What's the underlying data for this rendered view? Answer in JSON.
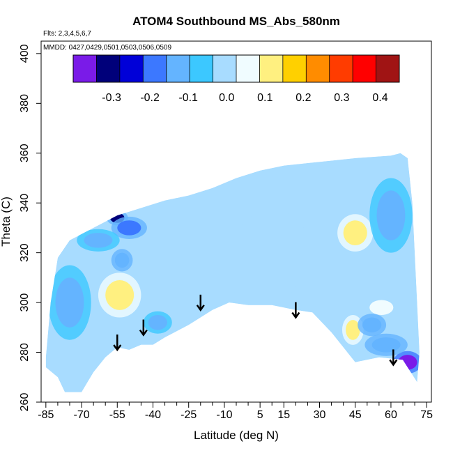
{
  "chart_data": {
    "type": "heatmap",
    "title": "ATOM4 Southbound MS_Abs_580nm",
    "annotations": {
      "flights": "Flts: 2,3,4,5,6,7",
      "dates": "MMDD: 0427,0429,0501,0503,0506,0509"
    },
    "xlabel": "Latitude (deg N)",
    "ylabel": "Theta (C)",
    "xlim": [
      -87,
      77
    ],
    "ylim": [
      260,
      405
    ],
    "x_ticks": [
      -85,
      -70,
      -55,
      -40,
      -25,
      -10,
      5,
      15,
      30,
      45,
      60,
      75
    ],
    "x_tick_labels": [
      "-85",
      "-70",
      "-55",
      "-40",
      "-25",
      "-10",
      "5",
      "15",
      "30",
      "45",
      "60",
      "75"
    ],
    "x_minor_ticks": [
      -80,
      -75,
      -65,
      -60,
      -50,
      -45,
      -35,
      -30,
      -20,
      -15,
      -5,
      0,
      10,
      20,
      25,
      35,
      40,
      50,
      55,
      65,
      70
    ],
    "y_ticks": [
      260,
      280,
      300,
      320,
      340,
      360,
      380,
      400
    ],
    "y_tick_labels": [
      "260",
      "280",
      "300",
      "320",
      "340",
      "360",
      "380",
      "400"
    ],
    "colorbar": {
      "colors": [
        "#7a1be8",
        "#00007a",
        "#0000d8",
        "#3c78ff",
        "#64b4ff",
        "#3cc8ff",
        "#a8dcff",
        "#f0fcff",
        "#fff080",
        "#ffd000",
        "#ff8c00",
        "#ff3c00",
        "#ff0000",
        "#a01414"
      ],
      "breaks": [
        -0.4,
        -0.35,
        -0.3,
        -0.25,
        -0.2,
        -0.15,
        -0.1,
        -0.05,
        0.0,
        0.05,
        0.1,
        0.15,
        0.2,
        0.25,
        0.3,
        0.35,
        0.4,
        0.45
      ],
      "tick_values": [
        -0.3,
        -0.2,
        -0.1,
        0.0,
        0.1,
        0.2,
        0.3,
        0.4
      ],
      "tick_labels": [
        "-0.3",
        "-0.2",
        "-0.1",
        "0.0",
        "0.1",
        "0.2",
        "0.3",
        "0.4"
      ]
    },
    "field": {
      "background": 0.0,
      "boundary": [
        [
          -85,
          278
        ],
        [
          -83,
          300
        ],
        [
          -80,
          318
        ],
        [
          -75,
          325
        ],
        [
          -65,
          330
        ],
        [
          -55,
          335
        ],
        [
          -45,
          338
        ],
        [
          -35,
          341
        ],
        [
          -25,
          343
        ],
        [
          -15,
          346
        ],
        [
          -5,
          350
        ],
        [
          5,
          353
        ],
        [
          15,
          355
        ],
        [
          25,
          356
        ],
        [
          35,
          357
        ],
        [
          45,
          358
        ],
        [
          60,
          359
        ],
        [
          64,
          360
        ],
        [
          67,
          358
        ],
        [
          69,
          340
        ],
        [
          71,
          300
        ],
        [
          72,
          280
        ],
        [
          71,
          268
        ],
        [
          65,
          277
        ],
        [
          55,
          278
        ],
        [
          45,
          276
        ],
        [
          40,
          282
        ],
        [
          35,
          288
        ],
        [
          27,
          296
        ],
        [
          20,
          297
        ],
        [
          10,
          299
        ],
        [
          0,
          299
        ],
        [
          -8,
          300
        ],
        [
          -15,
          297
        ],
        [
          -25,
          291
        ],
        [
          -35,
          286
        ],
        [
          -40,
          283
        ],
        [
          -45,
          283
        ],
        [
          -50,
          281
        ],
        [
          -55,
          282
        ],
        [
          -60,
          278
        ],
        [
          -65,
          272
        ],
        [
          -70,
          264
        ],
        [
          -77,
          264
        ],
        [
          -80,
          270
        ],
        [
          -85,
          274
        ]
      ],
      "blobs": [
        {
          "lat": -54,
          "theta": 303,
          "value": 0.12,
          "rx": 6,
          "ry": 6
        },
        {
          "lat": 45,
          "theta": 328,
          "value": 0.13,
          "rx": 5,
          "ry": 5
        },
        {
          "lat": 56,
          "theta": 298,
          "value": 0.08,
          "rx": 5,
          "ry": 3
        },
        {
          "lat": 44,
          "theta": 289,
          "value": 0.1,
          "rx": 3,
          "ry": 4
        },
        {
          "lat": -55,
          "theta": 334,
          "value": -0.3,
          "rx": 3,
          "ry": 2
        },
        {
          "lat": -50,
          "theta": 330,
          "value": -0.18,
          "rx": 5,
          "ry": 3
        },
        {
          "lat": -53,
          "theta": 317,
          "value": -0.12,
          "rx": 3,
          "ry": 3
        },
        {
          "lat": -63,
          "theta": 325,
          "value": -0.08,
          "rx": 6,
          "ry": 3
        },
        {
          "lat": 67,
          "theta": 276,
          "value": -0.35,
          "rx": 4,
          "ry": 3
        },
        {
          "lat": 58,
          "theta": 283,
          "value": -0.14,
          "rx": 6,
          "ry": 3
        },
        {
          "lat": 52,
          "theta": 291,
          "value": -0.15,
          "rx": 4,
          "ry": 3
        },
        {
          "lat": -38,
          "theta": 292,
          "value": -0.08,
          "rx": 4,
          "ry": 3
        },
        {
          "lat": -75,
          "theta": 300,
          "value": -0.06,
          "rx": 6,
          "ry": 10
        },
        {
          "lat": 10,
          "theta": 315,
          "value": 0.02,
          "rx": 12,
          "ry": 15
        },
        {
          "lat": 60,
          "theta": 335,
          "value": -0.06,
          "rx": 6,
          "ry": 10
        }
      ]
    },
    "arrows": [
      {
        "lat": -55,
        "theta": 281
      },
      {
        "lat": -44,
        "theta": 287
      },
      {
        "lat": -20,
        "theta": 297
      },
      {
        "lat": 20,
        "theta": 294
      },
      {
        "lat": 61,
        "theta": 275
      }
    ]
  }
}
